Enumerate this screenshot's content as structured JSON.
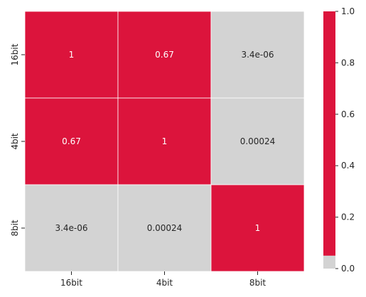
{
  "chart_data": {
    "type": "heatmap",
    "title": "",
    "xlabel": "",
    "ylabel": "",
    "x_categories": [
      "16bit",
      "4bit",
      "8bit"
    ],
    "y_categories": [
      "16bit",
      "4bit",
      "8bit"
    ],
    "values": [
      [
        1,
        0.67,
        3.4e-06
      ],
      [
        0.67,
        1,
        0.00024
      ],
      [
        3.4e-06,
        0.00024,
        1
      ]
    ],
    "annotations": [
      [
        "1",
        "0.67",
        "3.4e-06"
      ],
      [
        "0.67",
        "1",
        "0.00024"
      ],
      [
        "3.4e-06",
        "0.00024",
        "1"
      ]
    ],
    "colormap": {
      "type": "two-color",
      "threshold": 0.05,
      "low_color": "#d3d3d3",
      "high_color": "#dc143c"
    },
    "colorbar": {
      "range": [
        0,
        1
      ],
      "ticks": [
        0.0,
        0.2,
        0.4,
        0.6,
        0.8,
        1.0
      ],
      "tick_labels": [
        "0.0",
        "0.2",
        "0.4",
        "0.6",
        "0.8",
        "1.0"
      ]
    },
    "annotation_colors": {
      "on_high": "#ffffff",
      "on_low": "#262626"
    },
    "grid_line_color": "#ffffff"
  }
}
